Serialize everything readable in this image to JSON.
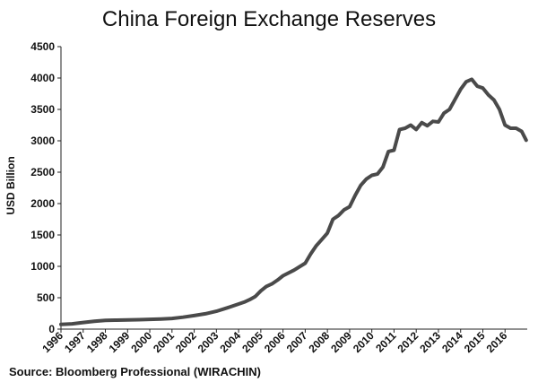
{
  "chart_data": {
    "type": "line",
    "title": "China Foreign Exchange Reserves",
    "ylabel": "USD Billion",
    "xlabel": "",
    "source": "Source: Bloomberg Professional  (WIRACHIN)",
    "ylim": [
      0,
      4500
    ],
    "yticks": [
      0,
      500,
      1000,
      1500,
      2000,
      2500,
      3000,
      3500,
      4000,
      4500
    ],
    "xticks": [
      "1996",
      "1997",
      "1998",
      "1999",
      "2000",
      "2001",
      "2002",
      "2003",
      "2004",
      "2005",
      "2006",
      "2007",
      "2008",
      "2009",
      "2010",
      "2011",
      "2012",
      "2013",
      "2014",
      "2015",
      "2016"
    ],
    "xlim": [
      1996,
      2017
    ],
    "grid": false,
    "line_color": "#4a4a4a",
    "series": [
      {
        "x": [
          1996.0,
          1996.5,
          1997.0,
          1997.5,
          1998.0,
          1998.5,
          1999.0,
          1999.5,
          2000.0,
          2000.5,
          2001.0,
          2001.5,
          2002.0,
          2002.5,
          2003.0,
          2003.5,
          2004.0,
          2004.25,
          2004.5,
          2004.75,
          2005.0,
          2005.25,
          2005.5,
          2005.75,
          2006.0,
          2006.5,
          2007.0,
          2007.25,
          2007.5,
          2007.75,
          2008.0,
          2008.25,
          2008.5,
          2008.75,
          2009.0,
          2009.25,
          2009.5,
          2009.75,
          2010.0,
          2010.25,
          2010.5,
          2010.75,
          2011.0,
          2011.25,
          2011.5,
          2011.75,
          2012.0,
          2012.25,
          2012.5,
          2012.75,
          2013.0,
          2013.25,
          2013.5,
          2013.75,
          2014.0,
          2014.25,
          2014.5,
          2014.75,
          2015.0,
          2015.25,
          2015.5,
          2015.75,
          2016.0,
          2016.25,
          2016.5,
          2016.75,
          2016.95
        ],
        "values": [
          75,
          85,
          105,
          125,
          140,
          143,
          146,
          150,
          155,
          162,
          170,
          190,
          215,
          245,
          285,
          340,
          400,
          430,
          470,
          520,
          610,
          680,
          720,
          780,
          850,
          940,
          1050,
          1200,
          1330,
          1430,
          1530,
          1750,
          1810,
          1900,
          1950,
          2130,
          2290,
          2390,
          2450,
          2470,
          2580,
          2830,
          2850,
          3180,
          3200,
          3250,
          3180,
          3290,
          3240,
          3310,
          3300,
          3440,
          3500,
          3660,
          3820,
          3940,
          3980,
          3870,
          3840,
          3730,
          3650,
          3500,
          3250,
          3200,
          3200,
          3150,
          3010
        ]
      }
    ]
  }
}
